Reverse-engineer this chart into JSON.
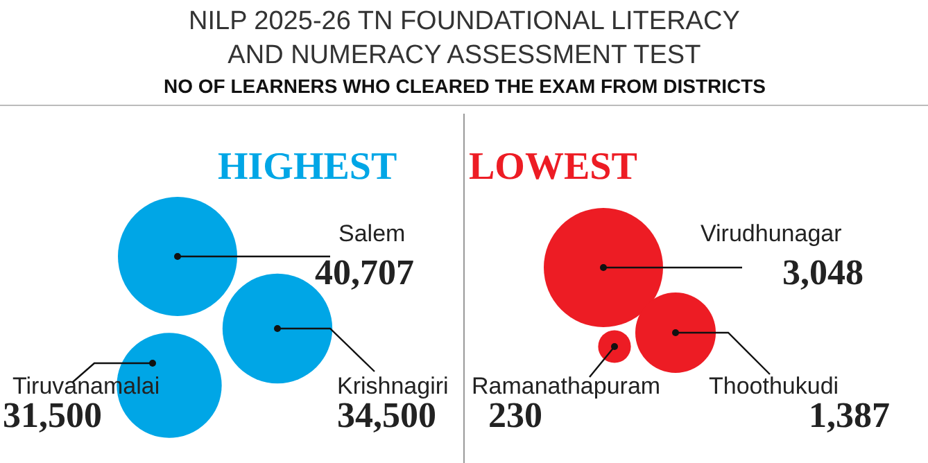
{
  "chart_data": [
    {
      "type": "other",
      "title": "NILP 2025-26 TN FOUNDATIONAL LITERACY\nAND NUMERACY ASSESSMENT TEST",
      "subtitle": "NO OF LEARNERS WHO CLEARED THE EXAM FROM DISTRICTS",
      "annotations": [
        "HIGHEST"
      ],
      "categories": [
        "Salem",
        "Krishnagiri",
        "Tiruvanamalai"
      ],
      "values": [
        40707,
        34500,
        31500
      ],
      "value_labels": [
        "40,707",
        "34,500",
        "31,500"
      ],
      "colors": [
        "#00a6e6",
        "#00a6e6",
        "#00a6e6"
      ]
    },
    {
      "type": "other",
      "annotations": [
        "LOWEST"
      ],
      "categories": [
        "Virudhunagar",
        "Thoothukudi",
        "Ramanathapuram"
      ],
      "values": [
        3048,
        1387,
        230
      ],
      "value_labels": [
        "3,048",
        "1,387",
        "230"
      ],
      "colors": [
        "#ed1c24",
        "#ed1c24",
        "#ed1c24"
      ]
    }
  ]
}
